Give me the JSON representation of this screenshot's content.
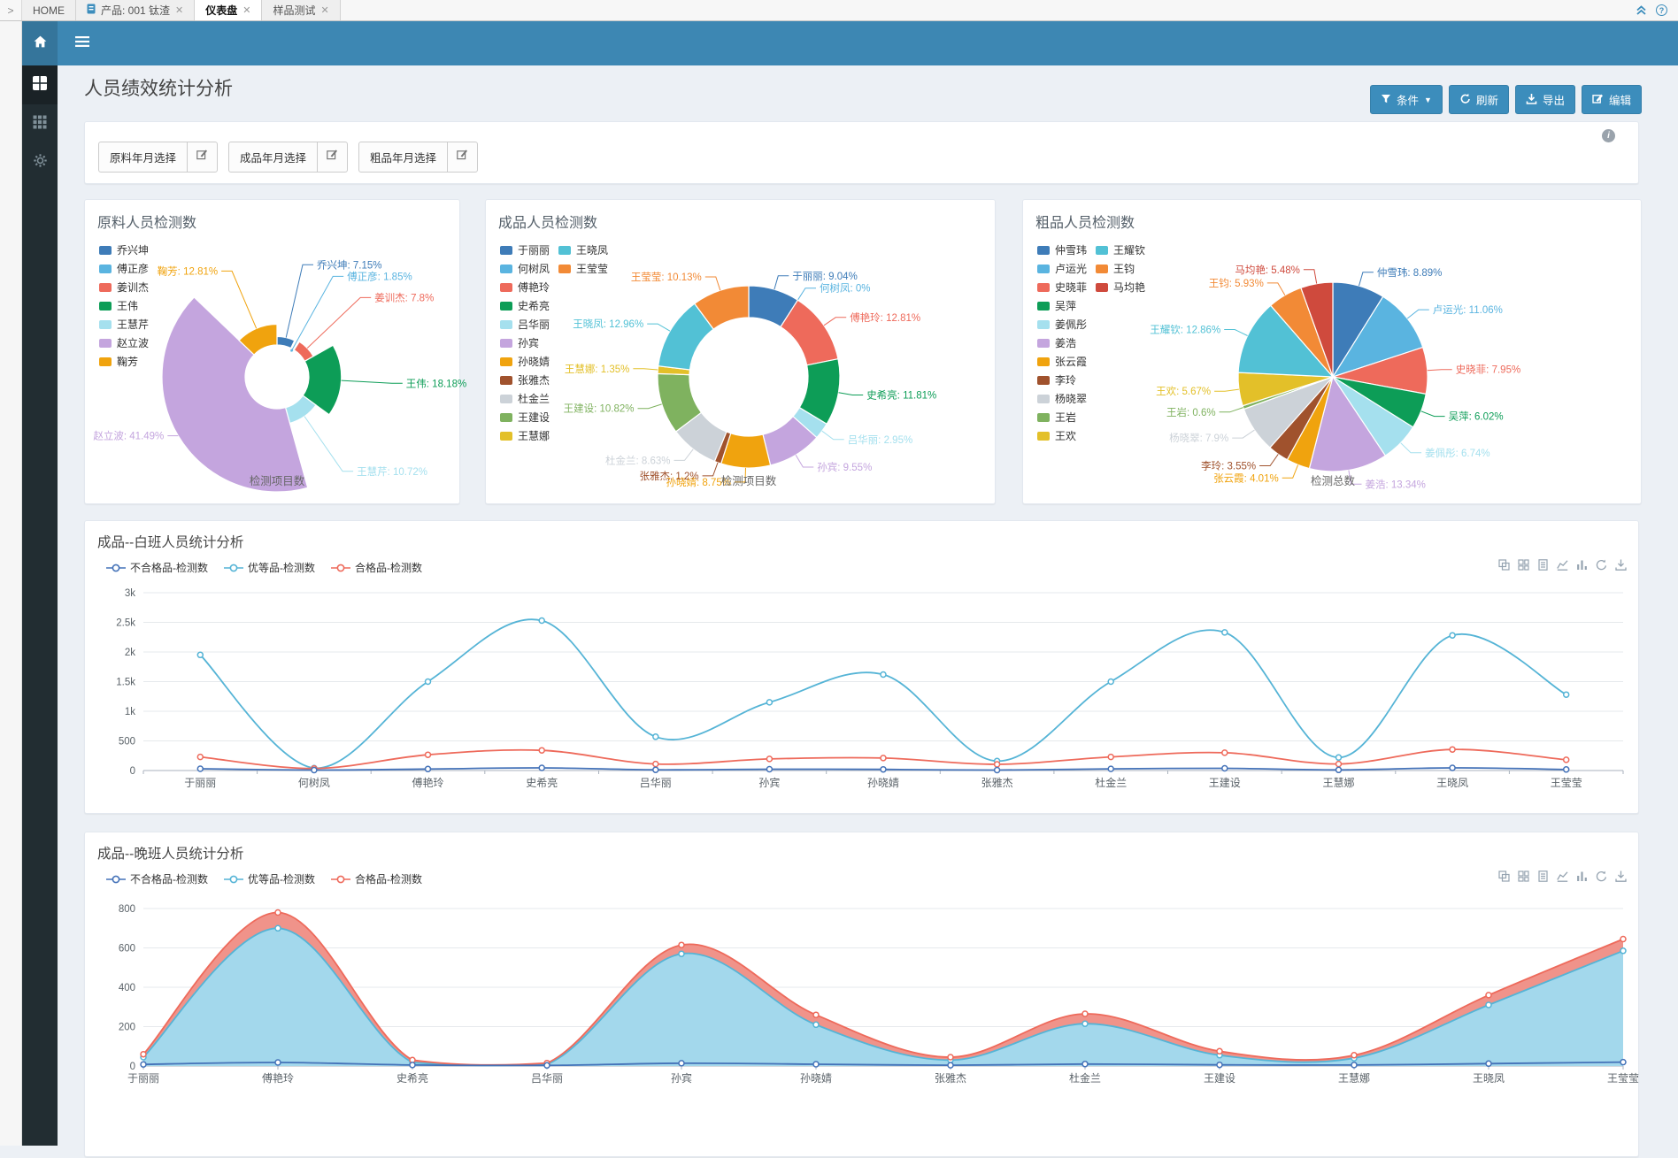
{
  "theme": {
    "header_blue": "#3d87b3",
    "button_blue": "#3c8dbc",
    "sidebar_dark": "#222d32"
  },
  "browser_tabs": {
    "expander": ">",
    "tabs": [
      {
        "label": "HOME",
        "closable": false,
        "active": false,
        "icon": null
      },
      {
        "label": "产品: 001 钛渣",
        "closable": true,
        "active": false,
        "icon": "document"
      },
      {
        "label": "仪表盘",
        "closable": true,
        "active": true,
        "icon": null
      },
      {
        "label": "样品测试",
        "closable": true,
        "active": false,
        "icon": null
      }
    ],
    "close_glyph": "✕",
    "right_icons": [
      "double-chevron-up-icon",
      "help-circle-icon"
    ]
  },
  "app_header": {
    "icons": [
      "home-icon",
      "hamburger-icon"
    ]
  },
  "sidebar": {
    "items": [
      {
        "icon": "grid-large-icon",
        "active": true
      },
      {
        "icon": "grid-small-icon",
        "active": false
      },
      {
        "icon": "gear-icon",
        "active": false
      }
    ]
  },
  "page": {
    "title": "人员绩效统计分析",
    "info_icon": "i"
  },
  "toolbar": {
    "buttons": [
      {
        "label": "条件",
        "icon": "filter",
        "caret": true
      },
      {
        "label": "刷新",
        "icon": "refresh",
        "caret": false
      },
      {
        "label": "导出",
        "icon": "export",
        "caret": false
      },
      {
        "label": "编辑",
        "icon": "edit",
        "caret": false
      }
    ]
  },
  "filters": {
    "buttons": [
      {
        "label": "原料年月选择",
        "icon": "edit-square"
      },
      {
        "label": "成品年月选择",
        "icon": "edit-square"
      },
      {
        "label": "粗品年月选择",
        "icon": "edit-square"
      }
    ]
  },
  "chart_data": [
    {
      "type": "pie",
      "variant": "rose",
      "title": "原料人员检测数",
      "axis_label": "检测项目数",
      "label_format": "name: value%",
      "legend_position": "left",
      "data": [
        {
          "name": "乔兴坤",
          "value": 7.15,
          "color": "#3e7cb8"
        },
        {
          "name": "傅正彦",
          "value": 1.85,
          "color": "#5ab4e0"
        },
        {
          "name": "姜训杰",
          "value": 7.8,
          "color": "#ee6a5b"
        },
        {
          "name": "王伟",
          "value": 18.18,
          "color": "#0d9d57"
        },
        {
          "name": "王慧芹",
          "value": 10.72,
          "color": "#a5e0ee"
        },
        {
          "name": "赵立波",
          "value": 41.49,
          "color": "#c4a5de"
        },
        {
          "name": "鞠芳",
          "value": 12.81,
          "color": "#f0a30e"
        }
      ]
    },
    {
      "type": "pie",
      "variant": "donut",
      "title": "成品人员检测数",
      "axis_label": "检测项目数",
      "label_format": "name: value%",
      "legend_position": "left",
      "data": [
        {
          "name": "于丽丽",
          "value": 9.04,
          "color": "#3e7cb8"
        },
        {
          "name": "何树凤",
          "value": 0,
          "color": "#5ab4e0"
        },
        {
          "name": "傅艳玲",
          "value": 12.81,
          "color": "#ee6a5b"
        },
        {
          "name": "史希亮",
          "value": 11.81,
          "color": "#0d9d57"
        },
        {
          "name": "吕华丽",
          "value": 2.95,
          "color": "#a5e0ee"
        },
        {
          "name": "孙宾",
          "value": 9.55,
          "color": "#c4a5de"
        },
        {
          "name": "孙晓婧",
          "value": 8.75,
          "color": "#f0a30e"
        },
        {
          "name": "张雅杰",
          "value": 1.2,
          "color": "#a0522d"
        },
        {
          "name": "杜金兰",
          "value": 8.63,
          "color": "#ccd2d8"
        },
        {
          "name": "王建设",
          "value": 10.82,
          "color": "#7fb25f"
        },
        {
          "name": "王慧娜",
          "value": 1.35,
          "color": "#e3c029"
        },
        {
          "name": "王晓凤",
          "value": 12.96,
          "color": "#52c1d5"
        },
        {
          "name": "王莹莹",
          "value": 10.13,
          "color": "#f28a36"
        }
      ]
    },
    {
      "type": "pie",
      "variant": "pie",
      "title": "粗品人员检测数",
      "axis_label": "检测总数",
      "label_format": "name: value%",
      "legend_position": "left",
      "data": [
        {
          "name": "仲雪玮",
          "value": 8.89,
          "color": "#3e7cb8"
        },
        {
          "name": "卢运光",
          "value": 11.06,
          "color": "#5ab4e0"
        },
        {
          "name": "史晓菲",
          "value": 7.95,
          "color": "#ee6a5b"
        },
        {
          "name": "吴萍",
          "value": 6.02,
          "color": "#0d9d57"
        },
        {
          "name": "姜佩彤",
          "value": 6.74,
          "color": "#a5e0ee"
        },
        {
          "name": "姜浩",
          "value": 13.34,
          "color": "#c4a5de"
        },
        {
          "name": "张云霞",
          "value": 4.01,
          "color": "#f0a30e"
        },
        {
          "name": "李玲",
          "value": 3.55,
          "color": "#a0522d"
        },
        {
          "name": "杨晓翠",
          "value": 7.9,
          "color": "#ccd2d8"
        },
        {
          "name": "王岩",
          "value": 0.6,
          "color": "#7fb25f"
        },
        {
          "name": "王欢",
          "value": 5.67,
          "color": "#e3c029"
        },
        {
          "name": "王耀钦",
          "value": 12.86,
          "color": "#52c1d5"
        },
        {
          "name": "王钧",
          "value": 5.93,
          "color": "#f28a36"
        },
        {
          "name": "马均艳",
          "value": 5.48,
          "color": "#cf4a3d"
        }
      ]
    },
    {
      "type": "line",
      "title": "成品--白班人员统计分析",
      "legend": [
        "不合格品-检测数",
        "优等品-检测数",
        "合格品-检测数"
      ],
      "toolbox": [
        "stack-icon",
        "tiled-icon",
        "data-view-icon",
        "line-chart-icon",
        "bar-chart-icon",
        "restore-icon",
        "save-image-icon"
      ],
      "categories": [
        "于丽丽",
        "何树凤",
        "傅艳玲",
        "史希亮",
        "吕华丽",
        "孙宾",
        "孙晓婧",
        "张雅杰",
        "杜金兰",
        "王建设",
        "王慧娜",
        "王晓凤",
        "王莹莹"
      ],
      "yticks": [
        "0",
        "500",
        "1k",
        "1.5k",
        "2k",
        "2.5k",
        "3k"
      ],
      "ylim": [
        0,
        3000
      ],
      "boundary_gap": true,
      "grid": true,
      "series": [
        {
          "name": "不合格品-检测数",
          "color": "#4472b8",
          "area": false,
          "values": [
            30,
            8,
            25,
            45,
            12,
            22,
            20,
            8,
            28,
            38,
            10,
            45,
            18
          ]
        },
        {
          "name": "优等品-检测数",
          "color": "#55b4d6",
          "area": false,
          "values": [
            1950,
            40,
            1500,
            2530,
            570,
            1150,
            1620,
            160,
            1500,
            2330,
            220,
            2280,
            1280
          ]
        },
        {
          "name": "合格品-检测数",
          "color": "#ee6a5b",
          "area": false,
          "values": [
            230,
            35,
            265,
            340,
            110,
            195,
            210,
            105,
            230,
            300,
            110,
            355,
            180
          ]
        }
      ]
    },
    {
      "type": "line",
      "title": "成品--晚班人员统计分析",
      "legend": [
        "不合格品-检测数",
        "优等品-检测数",
        "合格品-检测数"
      ],
      "toolbox": [
        "stack-icon",
        "tiled-icon",
        "data-view-icon",
        "line-chart-icon",
        "bar-chart-icon",
        "restore-icon",
        "save-image-icon"
      ],
      "categories": [
        "于丽丽",
        "傅艳玲",
        "史希亮",
        "吕华丽",
        "孙宾",
        "孙晓婧",
        "张雅杰",
        "杜金兰",
        "王建设",
        "王慧娜",
        "王晓凤",
        "王莹莹"
      ],
      "yticks": [
        "0",
        "200",
        "400",
        "600",
        "800"
      ],
      "ylim": [
        0,
        800
      ],
      "boundary_gap": false,
      "grid": true,
      "series": [
        {
          "name": "不合格品-检测数",
          "color": "#4472b8",
          "area": false,
          "values": [
            8,
            18,
            5,
            3,
            14,
            9,
            4,
            10,
            6,
            5,
            12,
            20
          ]
        },
        {
          "name": "优等品-检测数",
          "color": "#55b4d6",
          "area": true,
          "area_color": "#a3d8ec",
          "values": [
            45,
            700,
            18,
            8,
            570,
            210,
            30,
            215,
            55,
            40,
            310,
            585
          ]
        },
        {
          "name": "合格品-检测数",
          "color": "#ee6a5b",
          "area": true,
          "area_color": "#f0938a",
          "values": [
            60,
            780,
            30,
            15,
            615,
            260,
            45,
            265,
            75,
            55,
            360,
            645
          ]
        }
      ]
    }
  ]
}
